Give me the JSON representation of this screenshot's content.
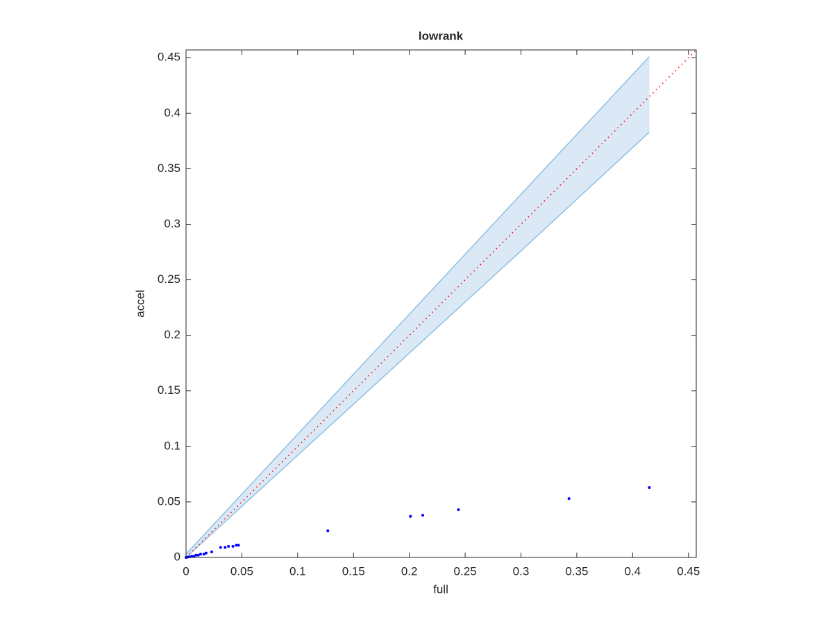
{
  "chart_data": {
    "type": "scatter",
    "title": "lowrank",
    "x_label": "full",
    "y_label": "accel",
    "xlim": [
      0,
      0.457
    ],
    "ylim": [
      0,
      0.457
    ],
    "xticks": [
      0,
      0.05,
      0.1,
      0.15,
      0.2,
      0.25,
      0.3,
      0.35,
      0.4,
      0.45
    ],
    "yticks": [
      0,
      0.05,
      0.1,
      0.15,
      0.2,
      0.25,
      0.3,
      0.35,
      0.4,
      0.45
    ],
    "grid": false,
    "band": {
      "color": "#8fbfe0",
      "fill": "#dae9f5",
      "x": [
        0,
        0.05,
        0.1,
        0.2,
        0.3,
        0.415
      ],
      "upper": [
        0.003,
        0.057,
        0.111,
        0.219,
        0.327,
        0.451
      ],
      "lower": [
        0,
        0.046,
        0.092,
        0.184,
        0.276,
        0.383
      ]
    },
    "reference": {
      "color": "#ff0000",
      "x": [
        0,
        0.457
      ],
      "y": [
        0,
        0.457
      ]
    },
    "series": [
      {
        "color": "#0000ff",
        "x": [
          0.415,
          0.343,
          0.244,
          0.212,
          0.201,
          0.127,
          0.047,
          0.045,
          0.042,
          0.038,
          0.035,
          0.031,
          0.023,
          0.018,
          0.016,
          0.013,
          0.011,
          0.009,
          0.007,
          0.005,
          0.003,
          0.001,
          0
        ],
        "values": [
          0.063,
          0.053,
          0.043,
          0.038,
          0.037,
          0.024,
          0.011,
          0.011,
          0.01,
          0.01,
          0.009,
          0.009,
          0.005,
          0.004,
          0.003,
          0.003,
          0.002,
          0.002,
          0.001,
          0.001,
          0.0005,
          0.0002,
          0
        ]
      }
    ]
  }
}
